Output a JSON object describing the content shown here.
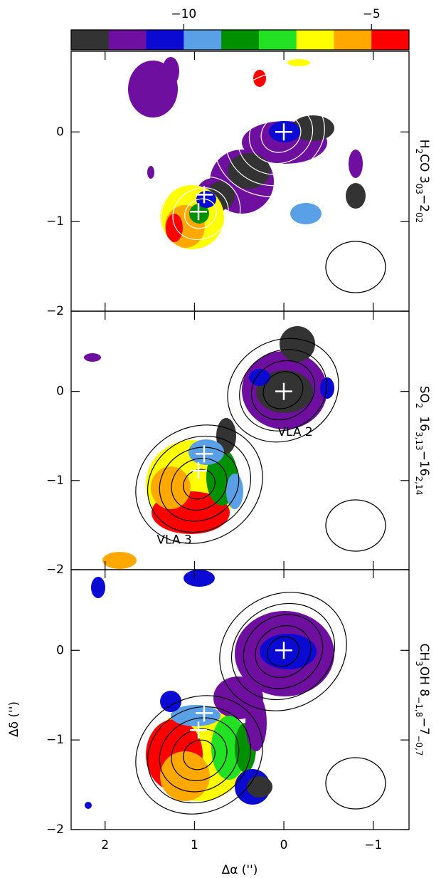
{
  "chart_data": {
    "type": "velocity-map",
    "colorbar": {
      "clim": [
        -13,
        -4
      ],
      "ticks": [
        {
          "value": -10,
          "label": "−10"
        },
        {
          "value": -5,
          "label": "−5"
        }
      ],
      "colors": [
        "#333333",
        "#6e0fa0",
        "#0a0ad2",
        "#5aa0e6",
        "#009000",
        "#22e022",
        "#ffff00",
        "#ffa800",
        "#ff0000"
      ]
    },
    "xlabel": "Δα ('')",
    "ylabel": "Δδ ('')",
    "xlim": [
      2.38,
      -1.4
    ],
    "xticks": [
      2,
      1,
      0,
      {
        "value": -1,
        "label": "−1"
      }
    ],
    "panels": [
      {
        "label": [
          "H",
          "2",
          "CO 3",
          "03",
          "−2",
          "02"
        ],
        "ylim": [
          -2,
          0.9
        ],
        "yticks": [
          {
            "value": -2,
            "label": "−2"
          },
          {
            "value": -1,
            "label": "−1"
          },
          0
        ]
      },
      {
        "label": [
          "SO",
          "2",
          "  16",
          "3,13",
          "−16",
          "2,14"
        ],
        "ylim": [
          -2,
          0.9
        ],
        "yticks": [
          {
            "value": -2,
            "label": "−2"
          },
          {
            "value": -1,
            "label": "−1"
          },
          0
        ],
        "annotations": [
          "VLA 2",
          "VLA 3"
        ]
      },
      {
        "label": [
          "CH",
          "3",
          "OH 8",
          "−1,8",
          "−7",
          "−0,7"
        ],
        "ylim": [
          -2,
          0.9
        ],
        "yticks": [
          {
            "value": -2,
            "label": "−2"
          },
          {
            "value": -1,
            "label": "−1"
          },
          0
        ]
      }
    ]
  }
}
